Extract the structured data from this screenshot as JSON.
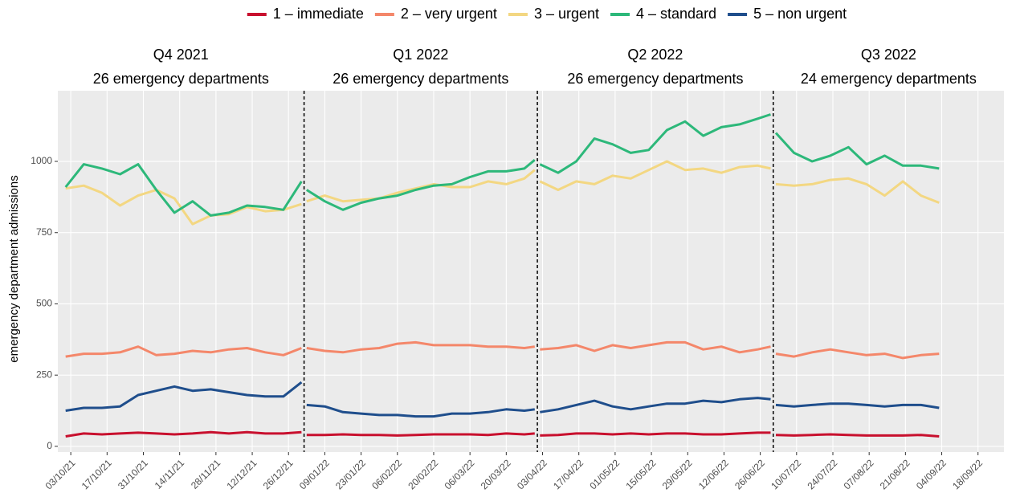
{
  "chart_data": {
    "type": "line",
    "y_label": "emergency department admissions",
    "xlim": [
      "28/09/21",
      "28/09/22"
    ],
    "xticks": [
      "03/10/21",
      "17/10/21",
      "31/10/21",
      "14/11/21",
      "28/11/21",
      "12/12/21",
      "26/12/21",
      "09/01/22",
      "23/01/22",
      "06/02/22",
      "20/02/22",
      "06/03/22",
      "20/03/22",
      "03/04/22",
      "17/04/22",
      "01/05/22",
      "15/05/22",
      "29/05/22",
      "12/06/22",
      "26/06/22",
      "10/07/22",
      "24/07/22",
      "07/08/22",
      "21/08/22",
      "04/09/22",
      "18/09/22"
    ],
    "ylim": [
      -20,
      1248
    ],
    "yticks": [
      0,
      250,
      500,
      750,
      1000
    ],
    "grid": true,
    "legend": "top",
    "vlines": [
      "01/01/22",
      "01/04/22",
      "01/07/22"
    ],
    "panels": [
      {
        "title": "Q4 2021",
        "subtitle": "26 emergency departments"
      },
      {
        "title": "Q1 2022",
        "subtitle": "26 emergency departments"
      },
      {
        "title": "Q2 2022",
        "subtitle": "26 emergency departments"
      },
      {
        "title": "Q3 2022",
        "subtitle": "24 emergency departments"
      }
    ],
    "x": [
      "01/10/21",
      "08/10/21",
      "15/10/21",
      "22/10/21",
      "29/10/21",
      "05/11/21",
      "12/11/21",
      "19/11/21",
      "26/11/21",
      "03/12/21",
      "10/12/21",
      "17/12/21",
      "24/12/21",
      "31/12/21",
      "01/01/22",
      "02/01/22",
      "09/01/22",
      "16/01/22",
      "23/01/22",
      "30/01/22",
      "06/02/22",
      "13/02/22",
      "20/02/22",
      "27/02/22",
      "06/03/22",
      "13/03/22",
      "20/03/22",
      "27/03/22",
      "31/03/22",
      "01/04/22",
      "02/04/22",
      "09/04/22",
      "16/04/22",
      "23/04/22",
      "30/04/22",
      "07/05/22",
      "14/05/22",
      "21/05/22",
      "28/05/22",
      "04/06/22",
      "11/06/22",
      "18/06/22",
      "25/06/22",
      "30/06/22",
      "01/07/22",
      "02/07/22",
      "09/07/22",
      "16/07/22",
      "23/07/22",
      "30/07/22",
      "06/08/22",
      "13/08/22",
      "20/08/22",
      "27/08/22",
      "03/09/22"
    ],
    "series": [
      {
        "name": "1 – immediate",
        "color": "#c8102e",
        "values": [
          35,
          45,
          42,
          45,
          48,
          45,
          42,
          45,
          50,
          45,
          50,
          45,
          45,
          50,
          null,
          40,
          40,
          42,
          40,
          40,
          38,
          40,
          42,
          42,
          42,
          40,
          45,
          42,
          45,
          null,
          38,
          40,
          45,
          45,
          42,
          45,
          42,
          45,
          45,
          42,
          42,
          45,
          48,
          48,
          null,
          40,
          38,
          40,
          42,
          40,
          38,
          38,
          38,
          40,
          35
        ]
      },
      {
        "name": "2 – very urgent",
        "color": "#f4876a",
        "values": [
          315,
          325,
          325,
          330,
          350,
          320,
          325,
          335,
          330,
          340,
          345,
          330,
          320,
          345,
          null,
          345,
          335,
          330,
          340,
          345,
          360,
          365,
          355,
          355,
          355,
          350,
          350,
          345,
          350,
          null,
          340,
          345,
          355,
          335,
          355,
          345,
          355,
          365,
          365,
          340,
          350,
          330,
          340,
          350,
          null,
          325,
          315,
          330,
          340,
          330,
          320,
          325,
          310,
          320,
          325
        ]
      },
      {
        "name": "3 – urgent",
        "color": "#f3d782",
        "values": [
          905,
          915,
          890,
          845,
          880,
          900,
          870,
          780,
          810,
          815,
          840,
          825,
          830,
          850,
          null,
          860,
          880,
          860,
          865,
          870,
          890,
          905,
          920,
          910,
          910,
          930,
          920,
          940,
          970,
          null,
          930,
          900,
          930,
          920,
          950,
          940,
          970,
          1000,
          970,
          975,
          960,
          980,
          985,
          975,
          null,
          920,
          915,
          920,
          935,
          940,
          920,
          880,
          930,
          880,
          855
        ]
      },
      {
        "name": "4 – standard",
        "color": "#2db87a",
        "values": [
          910,
          990,
          975,
          955,
          990,
          900,
          820,
          860,
          810,
          820,
          845,
          840,
          830,
          930,
          null,
          900,
          860,
          830,
          855,
          870,
          880,
          900,
          915,
          920,
          945,
          965,
          965,
          975,
          1005,
          null,
          990,
          960,
          1000,
          1080,
          1060,
          1030,
          1040,
          1110,
          1140,
          1090,
          1120,
          1130,
          1150,
          1165,
          null,
          1100,
          1030,
          1000,
          1020,
          1050,
          990,
          1020,
          985,
          985,
          975
        ]
      },
      {
        "name": "5 – non urgent",
        "color": "#1f4e8c",
        "values": [
          125,
          135,
          135,
          140,
          180,
          195,
          210,
          195,
          200,
          190,
          180,
          175,
          175,
          225,
          null,
          145,
          140,
          120,
          115,
          110,
          110,
          105,
          105,
          115,
          115,
          120,
          130,
          125,
          130,
          null,
          120,
          130,
          145,
          160,
          140,
          130,
          140,
          150,
          150,
          160,
          155,
          165,
          170,
          165,
          null,
          145,
          140,
          145,
          150,
          150,
          145,
          140,
          145,
          145,
          135
        ]
      }
    ]
  }
}
